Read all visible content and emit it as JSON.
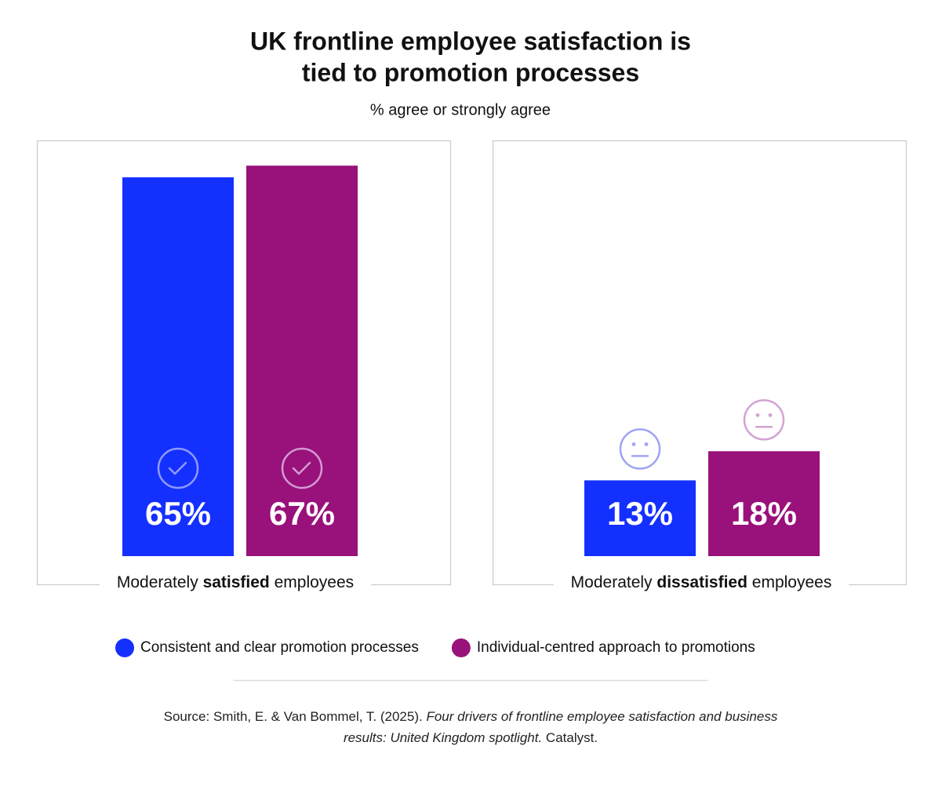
{
  "chart_data": {
    "type": "bar",
    "title": [
      "UK frontline employee satisfaction is",
      "tied to promotion processes"
    ],
    "subtitle": "% agree or strongly agree",
    "categories": [
      [
        "Moderately ",
        "satisfied",
        " employees"
      ],
      [
        "Moderately ",
        "dissatisfied",
        " employees"
      ]
    ],
    "series": [
      {
        "name": "Consistent and clear promotion processes",
        "color": "#1430ff",
        "values": [
          65,
          13
        ],
        "value_labels": [
          "65%",
          "13%"
        ]
      },
      {
        "name": "Individual-centred approach to promotions",
        "color": "#99117b",
        "values": [
          67,
          18
        ],
        "value_labels": [
          "67%",
          "18%"
        ]
      }
    ],
    "source": [
      "Source: Smith, E. & Van Bommel, T. (2025). ",
      "Four drivers of frontline employee satisfaction and business results: United Kingdom spotlight.",
      " Catalyst."
    ]
  }
}
